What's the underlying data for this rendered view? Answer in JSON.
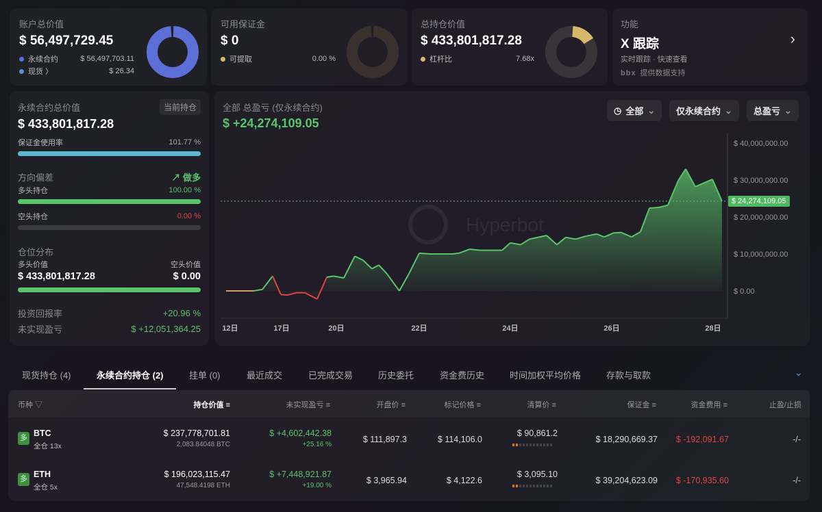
{
  "cards": {
    "account": {
      "title": "账户总价值",
      "value": "$ 56,497,729.45",
      "items": [
        {
          "label": "永续合约",
          "value": "$ 56,497,703.11",
          "color": "#5b6fd6"
        },
        {
          "label": "现货 〉",
          "value": "$ 26.34",
          "color": "#5a8fd6"
        }
      ]
    },
    "margin": {
      "title": "可用保证金",
      "value": "$ 0",
      "items": [
        {
          "label": "可提取",
          "value": "0.00 %",
          "color": "#d6b86a"
        }
      ]
    },
    "position": {
      "title": "总持仓价值",
      "value": "$ 433,801,817.28",
      "items": [
        {
          "label": "杠杆比",
          "value": "7.68x",
          "color": "#d6b86a"
        }
      ]
    },
    "feature": {
      "title": "功能",
      "value": "X 跟踪",
      "desc": "实时跟踪 · 快速查看",
      "logo": "bbx",
      "support": "提供数据支持"
    }
  },
  "left": {
    "title": "永续合约总价值",
    "badge": "当前持仓",
    "value": "$ 433,801,817.28",
    "margin_usage_label": "保证金使用率",
    "margin_usage": "101.77 %",
    "margin_usage_fill": 1.0,
    "bias_label": "方向偏差",
    "bias_value": "做多",
    "long_label": "多头持仓",
    "long_pct": "100.00 %",
    "long_fill": 1.0,
    "short_label": "空头持仓",
    "short_pct": "0.00 %",
    "short_fill": 0,
    "dist_label": "仓位分布",
    "long_value_label": "多头价值",
    "short_value_label": "空头价值",
    "long_value": "$ 433,801,817.28",
    "short_value": "$ 0.00",
    "roi_label": "投资回报率",
    "roi": "+20.96 %",
    "upnl_label": "未实现盈亏",
    "upnl": "$ +12,051,364.25"
  },
  "chart": {
    "title": "全部 总盈亏 (仅永续合约)",
    "value": "$ +24,274,109.05",
    "filters": [
      "全部",
      "仅永续合约",
      "总盈亏"
    ],
    "watermark": "Hyperbot",
    "current_label": "$ 24,274,109.05"
  },
  "chart_data": {
    "type": "area",
    "ylim": [
      -4000000,
      40000000
    ],
    "y_ticks": [
      "$ 40,000,000.00",
      "$ 30,000,000.00",
      "$ 20,000,000.00",
      "$ 10,000,000.00",
      "$ 0.00"
    ],
    "x_ticks": [
      "12日",
      "17日",
      "20日",
      "22日",
      "24日",
      "26日",
      "28日"
    ],
    "values": [
      0,
      0,
      400000,
      4000000,
      -1000000,
      -1100000,
      -500000,
      -500000,
      -2200000,
      3700000,
      4000000,
      3500000,
      9400000,
      8300000,
      6000000,
      7000000,
      4600000,
      0,
      5000000,
      10200000,
      10000000,
      10000000,
      10200000,
      11300000,
      11000000,
      11000000,
      13000000,
      12500000,
      14000000,
      15000000,
      12500000,
      14500000,
      14000000,
      14800000,
      15400000,
      14600000,
      15700000,
      15800000,
      14600000,
      16000000,
      22400000,
      22600000,
      23200000,
      29800000,
      33000000,
      28200000,
      29000000,
      30200000,
      24274109.05
    ],
    "colors": {
      "positive": "#5ac46a",
      "negative": "#e0453e"
    }
  },
  "tabs": [
    "现货持仓 (4)",
    "永续合约持仓 (2)",
    "挂单 (0)",
    "最近成交",
    "已完成交易",
    "历史委托",
    "资金费历史",
    "时间加权平均价格",
    "存款与取款"
  ],
  "table": {
    "headers": [
      "币种",
      "持仓价值",
      "未实现盈亏",
      "开盘价",
      "标记价格",
      "清算价",
      "保证金",
      "资金费用",
      "止盈/止损"
    ],
    "rows": [
      {
        "side": "多",
        "coin": "BTC",
        "mode": "全仓 13x",
        "value": "$ 237,778,701.81",
        "size": "2,083.84048 BTC",
        "pnl": "$ +4,602,442.38",
        "pnl_pct": "+25.16 %",
        "entry": "$ 111,897.3",
        "mark": "$ 114,106.0",
        "liq": "$ 90,861.2",
        "margin": "$ 18,290,669.37",
        "funding": "$ -192,091.67",
        "tpsl": "-/-"
      },
      {
        "side": "多",
        "coin": "ETH",
        "mode": "全仓 5x",
        "value": "$ 196,023,115.47",
        "size": "47,548.4198 ETH",
        "pnl": "$ +7,448,921.87",
        "pnl_pct": "+19.00 %",
        "entry": "$ 3,965.94",
        "mark": "$ 4,122.6",
        "liq": "$ 3,095.10",
        "margin": "$ 39,204,623.09",
        "funding": "$ -170,935.60",
        "tpsl": "-/-"
      }
    ]
  }
}
